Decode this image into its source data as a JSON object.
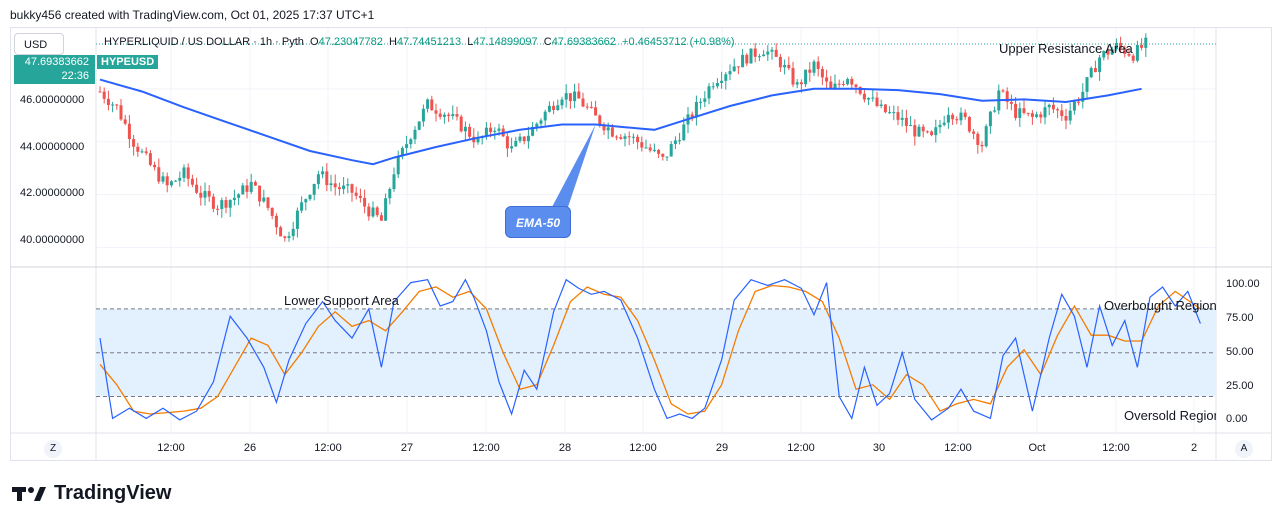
{
  "credit": "bukky456 created with TradingView.com, Oct 01, 2025 17:37 UTC+1",
  "currency_button": "USD",
  "header": {
    "symbol": "HYPERLIQUID / US DOLLAR · 1h · Pyth",
    "open_label": "O",
    "open": "47.23047782",
    "high_label": "H",
    "high": "47.74451213",
    "low_label": "L",
    "low": "47.14899097",
    "close_label": "C",
    "close": "47.69383662",
    "change": "+0.46453712 (+0.98%)"
  },
  "price_tag": {
    "price": "47.69383662",
    "countdown": "22:36"
  },
  "symbol_tag": "HYPEUSD",
  "price_axis": [
    "46.00000000",
    "44.00000000",
    "42.00000000",
    "40.00000000"
  ],
  "osc_axis": [
    "100.00",
    "75.00",
    "50.00",
    "25.00",
    "0.00"
  ],
  "time_axis": [
    "12:00",
    "26",
    "12:00",
    "27",
    "12:00",
    "28",
    "12:00",
    "29",
    "12:00",
    "30",
    "12:00",
    "Oct",
    "12:00",
    "2"
  ],
  "annotations": {
    "upper": "Upper Resistance Area",
    "lower": "Lower Support Area",
    "overbought": "Overbought Region",
    "oversold": "Oversold Region",
    "ema": "EMA-50"
  },
  "corner_left": "Z",
  "corner_right": "A",
  "logo": "TradingView",
  "colors": {
    "up": "#26a69a",
    "down": "#ef5350",
    "ema": "#2962ff",
    "k": "#2962ff",
    "d": "#f57c00",
    "band": "#e3f0fd"
  },
  "chart_data": [
    {
      "type": "candlestick",
      "x_labels": [
        "12:00",
        "26",
        "12:00",
        "27",
        "12:00",
        "28",
        "12:00",
        "29",
        "12:00",
        "30",
        "12:00",
        "Oct",
        "12:00",
        "2"
      ],
      "ylim": [
        39.3,
        48.3
      ],
      "y_ticks": [
        40,
        42,
        44,
        46
      ],
      "current_price": 47.69383662,
      "ema50_label": "EMA-50",
      "ema50": [
        [
          0,
          46.35
        ],
        [
          10,
          45.9
        ],
        [
          20,
          45.3
        ],
        [
          30,
          44.75
        ],
        [
          40,
          44.2
        ],
        [
          50,
          43.65
        ],
        [
          60,
          43.3
        ],
        [
          65,
          43.15
        ],
        [
          70,
          43.4
        ],
        [
          80,
          43.8
        ],
        [
          90,
          44.15
        ],
        [
          100,
          44.45
        ],
        [
          110,
          44.65
        ],
        [
          118,
          44.65
        ],
        [
          125,
          44.55
        ],
        [
          132,
          44.45
        ],
        [
          140,
          44.85
        ],
        [
          150,
          45.35
        ],
        [
          160,
          45.75
        ],
        [
          170,
          46.0
        ],
        [
          180,
          46.0
        ],
        [
          190,
          45.95
        ],
        [
          200,
          45.8
        ],
        [
          210,
          45.55
        ],
        [
          220,
          45.6
        ],
        [
          230,
          45.5
        ],
        [
          240,
          45.75
        ],
        [
          248,
          46.0
        ]
      ],
      "close_path": [
        [
          0,
          45.9
        ],
        [
          4,
          45.3
        ],
        [
          8,
          44.0
        ],
        [
          12,
          43.1
        ],
        [
          16,
          42.3
        ],
        [
          20,
          42.8
        ],
        [
          24,
          42.0
        ],
        [
          28,
          41.6
        ],
        [
          32,
          41.9
        ],
        [
          36,
          42.4
        ],
        [
          40,
          41.5
        ],
        [
          44,
          40.3
        ],
        [
          48,
          41.6
        ],
        [
          52,
          42.8
        ],
        [
          56,
          42.3
        ],
        [
          60,
          42.1
        ],
        [
          64,
          41.4
        ],
        [
          67,
          41.0
        ],
        [
          70,
          42.9
        ],
        [
          74,
          44.3
        ],
        [
          78,
          45.4
        ],
        [
          82,
          45.1
        ],
        [
          86,
          44.6
        ],
        [
          90,
          44.0
        ],
        [
          94,
          44.6
        ],
        [
          98,
          43.7
        ],
        [
          102,
          44.3
        ],
        [
          106,
          45.1
        ],
        [
          110,
          45.8
        ],
        [
          114,
          45.6
        ],
        [
          118,
          44.9
        ],
        [
          122,
          44.4
        ],
        [
          126,
          44.2
        ],
        [
          130,
          43.8
        ],
        [
          134,
          43.3
        ],
        [
          138,
          44.3
        ],
        [
          142,
          45.3
        ],
        [
          146,
          46.3
        ],
        [
          150,
          46.8
        ],
        [
          154,
          47.2
        ],
        [
          158,
          47.5
        ],
        [
          162,
          47.0
        ],
        [
          166,
          46.1
        ],
        [
          170,
          46.9
        ],
        [
          174,
          45.9
        ],
        [
          178,
          46.5
        ],
        [
          182,
          45.8
        ],
        [
          186,
          45.2
        ],
        [
          190,
          44.9
        ],
        [
          194,
          44.4
        ],
        [
          198,
          44.1
        ],
        [
          202,
          45.2
        ],
        [
          206,
          44.8
        ],
        [
          210,
          43.9
        ],
        [
          214,
          45.9
        ],
        [
          218,
          45.1
        ],
        [
          222,
          44.9
        ],
        [
          226,
          45.3
        ],
        [
          230,
          45.0
        ],
        [
          234,
          45.9
        ],
        [
          238,
          47.2
        ],
        [
          242,
          47.6
        ],
        [
          246,
          47.3
        ],
        [
          249,
          47.69
        ]
      ]
    },
    {
      "type": "line",
      "name": "stochastic",
      "ylim": [
        -5,
        108
      ],
      "y_ticks": [
        0,
        25,
        50,
        75,
        100
      ],
      "bands": [
        20,
        50,
        80
      ],
      "k": [
        [
          0,
          60
        ],
        [
          3,
          5
        ],
        [
          7,
          12
        ],
        [
          11,
          5
        ],
        [
          15,
          12
        ],
        [
          19,
          4
        ],
        [
          23,
          10
        ],
        [
          27,
          30
        ],
        [
          31,
          75
        ],
        [
          35,
          60
        ],
        [
          39,
          40
        ],
        [
          42,
          16
        ],
        [
          45,
          45
        ],
        [
          49,
          70
        ],
        [
          53,
          85
        ],
        [
          56,
          72
        ],
        [
          60,
          60
        ],
        [
          64,
          80
        ],
        [
          67,
          40
        ],
        [
          70,
          85
        ],
        [
          74,
          98
        ],
        [
          78,
          100
        ],
        [
          81,
          82
        ],
        [
          84,
          85
        ],
        [
          87,
          100
        ],
        [
          89,
          88
        ],
        [
          92,
          65
        ],
        [
          95,
          30
        ],
        [
          98,
          8
        ],
        [
          101,
          38
        ],
        [
          104,
          25
        ],
        [
          108,
          78
        ],
        [
          111,
          100
        ],
        [
          114,
          94
        ],
        [
          117,
          90
        ],
        [
          120,
          92
        ],
        [
          124,
          86
        ],
        [
          128,
          60
        ],
        [
          132,
          25
        ],
        [
          135,
          5
        ],
        [
          138,
          8
        ],
        [
          141,
          5
        ],
        [
          144,
          12
        ],
        [
          148,
          45
        ],
        [
          151,
          86
        ],
        [
          155,
          100
        ],
        [
          159,
          96
        ],
        [
          163,
          100
        ],
        [
          167,
          94
        ],
        [
          170,
          76
        ],
        [
          173,
          98
        ],
        [
          176,
          20
        ],
        [
          179,
          5
        ],
        [
          182,
          40
        ],
        [
          185,
          14
        ],
        [
          188,
          22
        ],
        [
          191,
          50
        ],
        [
          194,
          18
        ],
        [
          198,
          4
        ],
        [
          202,
          12
        ],
        [
          205,
          25
        ],
        [
          208,
          10
        ],
        [
          212,
          5
        ],
        [
          215,
          48
        ],
        [
          218,
          60
        ],
        [
          222,
          10
        ],
        [
          226,
          60
        ],
        [
          229,
          90
        ],
        [
          232,
          75
        ],
        [
          235,
          40
        ],
        [
          238,
          82
        ],
        [
          241,
          55
        ],
        [
          244,
          72
        ],
        [
          247,
          40
        ],
        [
          250,
          88
        ],
        [
          253,
          95
        ],
        [
          256,
          82
        ],
        [
          259,
          92
        ],
        [
          262,
          70
        ]
      ],
      "d": [
        [
          0,
          42
        ],
        [
          4,
          28
        ],
        [
          8,
          10
        ],
        [
          12,
          8
        ],
        [
          16,
          9
        ],
        [
          20,
          10
        ],
        [
          24,
          12
        ],
        [
          28,
          20
        ],
        [
          32,
          40
        ],
        [
          36,
          60
        ],
        [
          40,
          55
        ],
        [
          44,
          35
        ],
        [
          48,
          50
        ],
        [
          52,
          68
        ],
        [
          56,
          78
        ],
        [
          60,
          68
        ],
        [
          64,
          72
        ],
        [
          68,
          65
        ],
        [
          72,
          78
        ],
        [
          76,
          92
        ],
        [
          80,
          95
        ],
        [
          84,
          88
        ],
        [
          88,
          92
        ],
        [
          92,
          80
        ],
        [
          96,
          50
        ],
        [
          100,
          25
        ],
        [
          104,
          28
        ],
        [
          108,
          55
        ],
        [
          112,
          85
        ],
        [
          116,
          95
        ],
        [
          120,
          90
        ],
        [
          124,
          88
        ],
        [
          128,
          72
        ],
        [
          132,
          45
        ],
        [
          136,
          15
        ],
        [
          140,
          8
        ],
        [
          144,
          10
        ],
        [
          148,
          28
        ],
        [
          152,
          65
        ],
        [
          156,
          92
        ],
        [
          160,
          96
        ],
        [
          164,
          95
        ],
        [
          168,
          92
        ],
        [
          172,
          85
        ],
        [
          176,
          60
        ],
        [
          180,
          25
        ],
        [
          184,
          28
        ],
        [
          188,
          18
        ],
        [
          192,
          35
        ],
        [
          196,
          28
        ],
        [
          200,
          10
        ],
        [
          204,
          15
        ],
        [
          208,
          18
        ],
        [
          212,
          15
        ],
        [
          216,
          40
        ],
        [
          220,
          52
        ],
        [
          224,
          35
        ],
        [
          228,
          62
        ],
        [
          232,
          82
        ],
        [
          236,
          62
        ],
        [
          240,
          62
        ],
        [
          244,
          58
        ],
        [
          248,
          58
        ],
        [
          252,
          82
        ],
        [
          256,
          92
        ],
        [
          260,
          84
        ],
        [
          262,
          80
        ]
      ]
    }
  ]
}
